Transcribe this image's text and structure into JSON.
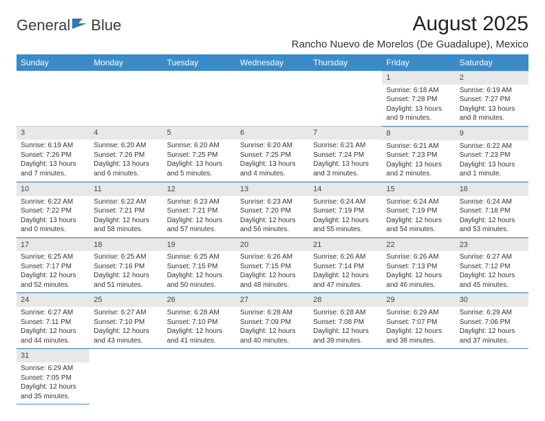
{
  "logo": {
    "text1": "General",
    "text2": "Blue",
    "icon_color": "#2f77b5"
  },
  "title": "August 2025",
  "location": "Rancho Nuevo de Morelos (De Guadalupe), Mexico",
  "colors": {
    "header_bg": "#3b8bc8",
    "header_text": "#ffffff",
    "daynum_bg": "#e8e8e8",
    "cell_border": "#3b8bc8",
    "body_text": "#333333"
  },
  "font": {
    "family": "Arial",
    "day_header_size": 12,
    "cell_size": 10,
    "title_size": 30
  },
  "day_headers": [
    "Sunday",
    "Monday",
    "Tuesday",
    "Wednesday",
    "Thursday",
    "Friday",
    "Saturday"
  ],
  "weeks": [
    [
      {
        "empty": true
      },
      {
        "empty": true
      },
      {
        "empty": true
      },
      {
        "empty": true
      },
      {
        "empty": true
      },
      {
        "n": "1",
        "sr": "Sunrise: 6:18 AM",
        "ss": "Sunset: 7:28 PM",
        "dl1": "Daylight: 13 hours",
        "dl2": "and 9 minutes."
      },
      {
        "n": "2",
        "sr": "Sunrise: 6:19 AM",
        "ss": "Sunset: 7:27 PM",
        "dl1": "Daylight: 13 hours",
        "dl2": "and 8 minutes."
      }
    ],
    [
      {
        "n": "3",
        "sr": "Sunrise: 6:19 AM",
        "ss": "Sunset: 7:26 PM",
        "dl1": "Daylight: 13 hours",
        "dl2": "and 7 minutes."
      },
      {
        "n": "4",
        "sr": "Sunrise: 6:20 AM",
        "ss": "Sunset: 7:26 PM",
        "dl1": "Daylight: 13 hours",
        "dl2": "and 6 minutes."
      },
      {
        "n": "5",
        "sr": "Sunrise: 6:20 AM",
        "ss": "Sunset: 7:25 PM",
        "dl1": "Daylight: 13 hours",
        "dl2": "and 5 minutes."
      },
      {
        "n": "6",
        "sr": "Sunrise: 6:20 AM",
        "ss": "Sunset: 7:25 PM",
        "dl1": "Daylight: 13 hours",
        "dl2": "and 4 minutes."
      },
      {
        "n": "7",
        "sr": "Sunrise: 6:21 AM",
        "ss": "Sunset: 7:24 PM",
        "dl1": "Daylight: 13 hours",
        "dl2": "and 3 minutes."
      },
      {
        "n": "8",
        "sr": "Sunrise: 6:21 AM",
        "ss": "Sunset: 7:23 PM",
        "dl1": "Daylight: 13 hours",
        "dl2": "and 2 minutes."
      },
      {
        "n": "9",
        "sr": "Sunrise: 6:22 AM",
        "ss": "Sunset: 7:23 PM",
        "dl1": "Daylight: 13 hours",
        "dl2": "and 1 minute."
      }
    ],
    [
      {
        "n": "10",
        "sr": "Sunrise: 6:22 AM",
        "ss": "Sunset: 7:22 PM",
        "dl1": "Daylight: 13 hours",
        "dl2": "and 0 minutes."
      },
      {
        "n": "11",
        "sr": "Sunrise: 6:22 AM",
        "ss": "Sunset: 7:21 PM",
        "dl1": "Daylight: 12 hours",
        "dl2": "and 58 minutes."
      },
      {
        "n": "12",
        "sr": "Sunrise: 6:23 AM",
        "ss": "Sunset: 7:21 PM",
        "dl1": "Daylight: 12 hours",
        "dl2": "and 57 minutes."
      },
      {
        "n": "13",
        "sr": "Sunrise: 6:23 AM",
        "ss": "Sunset: 7:20 PM",
        "dl1": "Daylight: 12 hours",
        "dl2": "and 56 minutes."
      },
      {
        "n": "14",
        "sr": "Sunrise: 6:24 AM",
        "ss": "Sunset: 7:19 PM",
        "dl1": "Daylight: 12 hours",
        "dl2": "and 55 minutes."
      },
      {
        "n": "15",
        "sr": "Sunrise: 6:24 AM",
        "ss": "Sunset: 7:19 PM",
        "dl1": "Daylight: 12 hours",
        "dl2": "and 54 minutes."
      },
      {
        "n": "16",
        "sr": "Sunrise: 6:24 AM",
        "ss": "Sunset: 7:18 PM",
        "dl1": "Daylight: 12 hours",
        "dl2": "and 53 minutes."
      }
    ],
    [
      {
        "n": "17",
        "sr": "Sunrise: 6:25 AM",
        "ss": "Sunset: 7:17 PM",
        "dl1": "Daylight: 12 hours",
        "dl2": "and 52 minutes."
      },
      {
        "n": "18",
        "sr": "Sunrise: 6:25 AM",
        "ss": "Sunset: 7:16 PM",
        "dl1": "Daylight: 12 hours",
        "dl2": "and 51 minutes."
      },
      {
        "n": "19",
        "sr": "Sunrise: 6:25 AM",
        "ss": "Sunset: 7:15 PM",
        "dl1": "Daylight: 12 hours",
        "dl2": "and 50 minutes."
      },
      {
        "n": "20",
        "sr": "Sunrise: 6:26 AM",
        "ss": "Sunset: 7:15 PM",
        "dl1": "Daylight: 12 hours",
        "dl2": "and 48 minutes."
      },
      {
        "n": "21",
        "sr": "Sunrise: 6:26 AM",
        "ss": "Sunset: 7:14 PM",
        "dl1": "Daylight: 12 hours",
        "dl2": "and 47 minutes."
      },
      {
        "n": "22",
        "sr": "Sunrise: 6:26 AM",
        "ss": "Sunset: 7:13 PM",
        "dl1": "Daylight: 12 hours",
        "dl2": "and 46 minutes."
      },
      {
        "n": "23",
        "sr": "Sunrise: 6:27 AM",
        "ss": "Sunset: 7:12 PM",
        "dl1": "Daylight: 12 hours",
        "dl2": "and 45 minutes."
      }
    ],
    [
      {
        "n": "24",
        "sr": "Sunrise: 6:27 AM",
        "ss": "Sunset: 7:11 PM",
        "dl1": "Daylight: 12 hours",
        "dl2": "and 44 minutes."
      },
      {
        "n": "25",
        "sr": "Sunrise: 6:27 AM",
        "ss": "Sunset: 7:10 PM",
        "dl1": "Daylight: 12 hours",
        "dl2": "and 43 minutes."
      },
      {
        "n": "26",
        "sr": "Sunrise: 6:28 AM",
        "ss": "Sunset: 7:10 PM",
        "dl1": "Daylight: 12 hours",
        "dl2": "and 41 minutes."
      },
      {
        "n": "27",
        "sr": "Sunrise: 6:28 AM",
        "ss": "Sunset: 7:09 PM",
        "dl1": "Daylight: 12 hours",
        "dl2": "and 40 minutes."
      },
      {
        "n": "28",
        "sr": "Sunrise: 6:28 AM",
        "ss": "Sunset: 7:08 PM",
        "dl1": "Daylight: 12 hours",
        "dl2": "and 39 minutes."
      },
      {
        "n": "29",
        "sr": "Sunrise: 6:29 AM",
        "ss": "Sunset: 7:07 PM",
        "dl1": "Daylight: 12 hours",
        "dl2": "and 38 minutes."
      },
      {
        "n": "30",
        "sr": "Sunrise: 6:29 AM",
        "ss": "Sunset: 7:06 PM",
        "dl1": "Daylight: 12 hours",
        "dl2": "and 37 minutes."
      }
    ],
    [
      {
        "n": "31",
        "sr": "Sunrise: 6:29 AM",
        "ss": "Sunset: 7:05 PM",
        "dl1": "Daylight: 12 hours",
        "dl2": "and 35 minutes."
      },
      {
        "empty": true
      },
      {
        "empty": true
      },
      {
        "empty": true
      },
      {
        "empty": true
      },
      {
        "empty": true
      },
      {
        "empty": true
      }
    ]
  ]
}
